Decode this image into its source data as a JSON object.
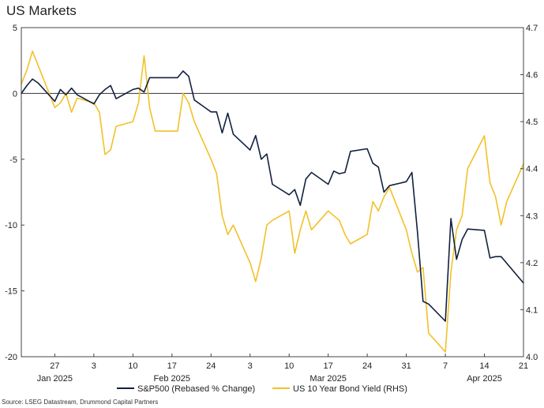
{
  "chart_data": {
    "type": "line",
    "title": "US Markets",
    "source": "Source: LSEG Datastream, Drummond Capital Partners",
    "legend_position": "bottom",
    "grid": false,
    "zero_line": true,
    "x_range": [
      "2025-01-21",
      "2025-04-21"
    ],
    "x_ticks": [
      {
        "date": "2025-01-27",
        "label": "27"
      },
      {
        "date": "2025-02-03",
        "label": "3"
      },
      {
        "date": "2025-02-10",
        "label": "10"
      },
      {
        "date": "2025-02-17",
        "label": "17"
      },
      {
        "date": "2025-02-24",
        "label": "24"
      },
      {
        "date": "2025-03-03",
        "label": "3"
      },
      {
        "date": "2025-03-10",
        "label": "10"
      },
      {
        "date": "2025-03-17",
        "label": "17"
      },
      {
        "date": "2025-03-24",
        "label": "24"
      },
      {
        "date": "2025-03-31",
        "label": "31"
      },
      {
        "date": "2025-04-07",
        "label": "7"
      },
      {
        "date": "2025-04-14",
        "label": "14"
      },
      {
        "date": "2025-04-21",
        "label": "21"
      }
    ],
    "month_labels": [
      {
        "date": "2025-01-27",
        "label": "Jan 2025"
      },
      {
        "date": "2025-02-17",
        "label": "Feb 2025"
      },
      {
        "date": "2025-03-17",
        "label": "Mar 2025"
      },
      {
        "date": "2025-04-14",
        "label": "Apr 2025"
      }
    ],
    "y_left": {
      "range": [
        -20,
        5
      ],
      "ticks": [
        "5",
        "0",
        "-5",
        "-10",
        "-15",
        "-20"
      ]
    },
    "y_right": {
      "range": [
        4.0,
        4.7
      ],
      "ticks": [
        "4.7",
        "4.6",
        "4.5",
        "4.4",
        "4.3",
        "4.2",
        "4.1",
        "4.0"
      ]
    },
    "series": [
      {
        "name": "S&P500 (Rebased % Change)",
        "axis": "left",
        "color": "#12213f",
        "points": [
          [
            "2025-01-21",
            0.0
          ],
          [
            "2025-01-22",
            0.6
          ],
          [
            "2025-01-23",
            1.1
          ],
          [
            "2025-01-24",
            0.8
          ],
          [
            "2025-01-27",
            -0.6
          ],
          [
            "2025-01-28",
            0.3
          ],
          [
            "2025-01-29",
            -0.1
          ],
          [
            "2025-01-30",
            0.4
          ],
          [
            "2025-01-31",
            -0.1
          ],
          [
            "2025-02-03",
            -0.8
          ],
          [
            "2025-02-04",
            -0.1
          ],
          [
            "2025-02-05",
            0.3
          ],
          [
            "2025-02-06",
            0.6
          ],
          [
            "2025-02-07",
            -0.4
          ],
          [
            "2025-02-10",
            0.3
          ],
          [
            "2025-02-11",
            0.4
          ],
          [
            "2025-02-12",
            0.1
          ],
          [
            "2025-02-13",
            1.2
          ],
          [
            "2025-02-14",
            1.2
          ],
          [
            "2025-02-18",
            1.2
          ],
          [
            "2025-02-19",
            1.7
          ],
          [
            "2025-02-20",
            1.3
          ],
          [
            "2025-02-21",
            -0.5
          ],
          [
            "2025-02-24",
            -1.4
          ],
          [
            "2025-02-25",
            -1.4
          ],
          [
            "2025-02-26",
            -3.0
          ],
          [
            "2025-02-27",
            -1.5
          ],
          [
            "2025-02-28",
            -3.1
          ],
          [
            "2025-03-03",
            -4.3
          ],
          [
            "2025-03-04",
            -3.2
          ],
          [
            "2025-03-05",
            -5.0
          ],
          [
            "2025-03-06",
            -4.6
          ],
          [
            "2025-03-07",
            -6.9
          ],
          [
            "2025-03-10",
            -7.7
          ],
          [
            "2025-03-11",
            -7.3
          ],
          [
            "2025-03-12",
            -8.5
          ],
          [
            "2025-03-13",
            -6.5
          ],
          [
            "2025-03-14",
            -6.0
          ],
          [
            "2025-03-17",
            -6.9
          ],
          [
            "2025-03-18",
            -5.9
          ],
          [
            "2025-03-19",
            -6.1
          ],
          [
            "2025-03-20",
            -6.0
          ],
          [
            "2025-03-21",
            -4.4
          ],
          [
            "2025-03-24",
            -4.2
          ],
          [
            "2025-03-25",
            -5.3
          ],
          [
            "2025-03-26",
            -5.6
          ],
          [
            "2025-03-27",
            -7.5
          ],
          [
            "2025-03-28",
            -7.0
          ],
          [
            "2025-03-31",
            -6.7
          ],
          [
            "2025-04-01",
            -6.0
          ],
          [
            "2025-04-02",
            -10.5
          ],
          [
            "2025-04-03",
            -15.8
          ],
          [
            "2025-04-04",
            -16.0
          ],
          [
            "2025-04-07",
            -17.3
          ],
          [
            "2025-04-08",
            -9.5
          ],
          [
            "2025-04-09",
            -12.6
          ],
          [
            "2025-04-10",
            -11.1
          ],
          [
            "2025-04-11",
            -10.3
          ],
          [
            "2025-04-14",
            -10.4
          ],
          [
            "2025-04-15",
            -12.5
          ],
          [
            "2025-04-16",
            -12.4
          ],
          [
            "2025-04-17",
            -12.4
          ],
          [
            "2025-04-21",
            -14.4
          ]
        ]
      },
      {
        "name": "US 10 Year Bond Yield (RHS)",
        "axis": "right",
        "color": "#f2c128",
        "points": [
          [
            "2025-01-21",
            4.58
          ],
          [
            "2025-01-22",
            4.61
          ],
          [
            "2025-01-23",
            4.65
          ],
          [
            "2025-01-24",
            4.62
          ],
          [
            "2025-01-27",
            4.53
          ],
          [
            "2025-01-28",
            4.54
          ],
          [
            "2025-01-29",
            4.56
          ],
          [
            "2025-01-30",
            4.52
          ],
          [
            "2025-01-31",
            4.55
          ],
          [
            "2025-02-03",
            4.54
          ],
          [
            "2025-02-04",
            4.52
          ],
          [
            "2025-02-05",
            4.43
          ],
          [
            "2025-02-06",
            4.44
          ],
          [
            "2025-02-07",
            4.49
          ],
          [
            "2025-02-10",
            4.5
          ],
          [
            "2025-02-11",
            4.54
          ],
          [
            "2025-02-12",
            4.64
          ],
          [
            "2025-02-13",
            4.53
          ],
          [
            "2025-02-14",
            4.48
          ],
          [
            "2025-02-18",
            4.48
          ],
          [
            "2025-02-19",
            4.56
          ],
          [
            "2025-02-20",
            4.54
          ],
          [
            "2025-02-21",
            4.5
          ],
          [
            "2025-02-24",
            4.42
          ],
          [
            "2025-02-25",
            4.39
          ],
          [
            "2025-02-26",
            4.3
          ],
          [
            "2025-02-27",
            4.26
          ],
          [
            "2025-02-28",
            4.28
          ],
          [
            "2025-03-03",
            4.2
          ],
          [
            "2025-03-04",
            4.16
          ],
          [
            "2025-03-05",
            4.21
          ],
          [
            "2025-03-06",
            4.28
          ],
          [
            "2025-03-07",
            4.29
          ],
          [
            "2025-03-10",
            4.31
          ],
          [
            "2025-03-11",
            4.22
          ],
          [
            "2025-03-12",
            4.27
          ],
          [
            "2025-03-13",
            4.31
          ],
          [
            "2025-03-14",
            4.27
          ],
          [
            "2025-03-17",
            4.31
          ],
          [
            "2025-03-18",
            4.3
          ],
          [
            "2025-03-19",
            4.29
          ],
          [
            "2025-03-20",
            4.26
          ],
          [
            "2025-03-21",
            4.24
          ],
          [
            "2025-03-24",
            4.26
          ],
          [
            "2025-03-25",
            4.33
          ],
          [
            "2025-03-26",
            4.31
          ],
          [
            "2025-03-27",
            4.34
          ],
          [
            "2025-03-28",
            4.36
          ],
          [
            "2025-03-31",
            4.27
          ],
          [
            "2025-04-01",
            4.22
          ],
          [
            "2025-04-02",
            4.18
          ],
          [
            "2025-04-03",
            4.19
          ],
          [
            "2025-04-04",
            4.05
          ],
          [
            "2025-04-07",
            4.01
          ],
          [
            "2025-04-08",
            4.18
          ],
          [
            "2025-04-09",
            4.27
          ],
          [
            "2025-04-10",
            4.3
          ],
          [
            "2025-04-11",
            4.4
          ],
          [
            "2025-04-14",
            4.47
          ],
          [
            "2025-04-15",
            4.37
          ],
          [
            "2025-04-16",
            4.34
          ],
          [
            "2025-04-17",
            4.28
          ],
          [
            "2025-04-18",
            4.33
          ],
          [
            "2025-04-21",
            4.41
          ]
        ]
      }
    ]
  }
}
